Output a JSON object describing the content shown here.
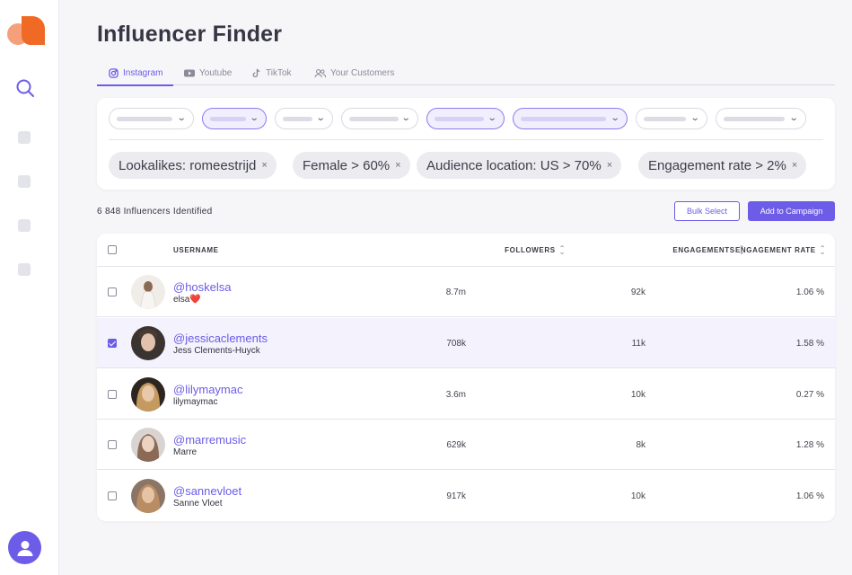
{
  "app": {
    "title": "Influencer Finder"
  },
  "tabs": [
    {
      "label": "Instagram",
      "icon": "instagram-icon",
      "active": true
    },
    {
      "label": "Youtube",
      "icon": "youtube-icon",
      "active": false
    },
    {
      "label": "TikTok",
      "icon": "tiktok-icon",
      "active": false
    },
    {
      "label": "Your Customers",
      "icon": "users-icon",
      "active": false
    }
  ],
  "filters": {
    "chips": [
      {
        "label": "Lookalikes: romeestrijd"
      },
      {
        "label": "Female > 60%"
      },
      {
        "label": "Audience location: US > 70%"
      },
      {
        "label": "Engagement rate > 2%"
      }
    ],
    "remove_glyph": "×"
  },
  "results": {
    "count_text": "6 848 Influencers Identified",
    "bulk_select_label": "Bulk Select",
    "add_campaign_label": "Add to Campaign"
  },
  "table": {
    "headers": {
      "username": "USERNAME",
      "followers": "FOLLOWERS",
      "engagements": "ENGAGEMENTS",
      "engagement_rate": "ENGAGEMENT RATE"
    },
    "rows": [
      {
        "handle": "@hoskelsa",
        "name": "elsa❤️",
        "followers": "8.7m",
        "engagements": "92k",
        "rate": "1.06 %",
        "selected": false
      },
      {
        "handle": "@jessicaclements",
        "name": "Jess Clements-Huyck",
        "followers": "708k",
        "engagements": "11k",
        "rate": "1.58 %",
        "selected": true
      },
      {
        "handle": "@lilymaymac",
        "name": "lilymaymac",
        "followers": "3.6m",
        "engagements": "10k",
        "rate": "0.27 %",
        "selected": false
      },
      {
        "handle": "@marremusic",
        "name": "Marre",
        "followers": "629k",
        "engagements": "8k",
        "rate": "1.28 %",
        "selected": false
      },
      {
        "handle": "@sannevloet",
        "name": "Sanne Vloet",
        "followers": "917k",
        "engagements": "10k",
        "rate": "1.06 %",
        "selected": false
      }
    ]
  },
  "colors": {
    "accent": "#6c5ce7",
    "brand": "#f06a25",
    "background": "#f6f6f9"
  }
}
